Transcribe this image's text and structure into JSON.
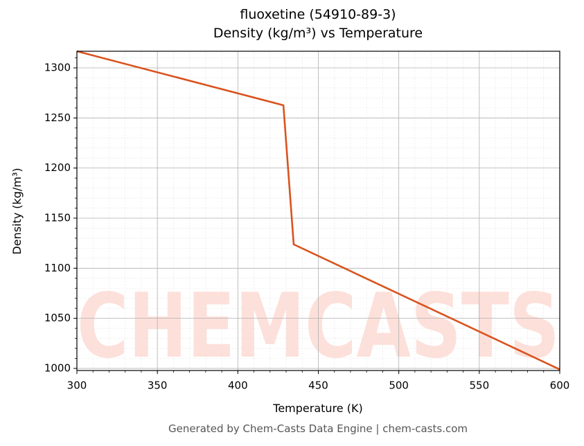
{
  "chart_data": {
    "type": "line",
    "title": "fluoxetine (54910-89-3)",
    "subtitle": "Density (kg/m³) vs Temperature",
    "x_label": "Temperature (K)",
    "y_label": "Density (kg/m³)",
    "footer": "Generated by Chem-Casts Data Engine | chem-casts.com",
    "watermark": "CHEMCASTS",
    "x": [
      300,
      428.3,
      434.7,
      600
    ],
    "series": [
      {
        "name": "Density",
        "color": "#d9531e",
        "values": [
          1316.6,
          1262.7,
          1123.8,
          999
        ]
      }
    ],
    "xlim": [
      300,
      600
    ],
    "xticks": [
      300,
      350,
      400,
      450,
      500,
      550,
      600
    ],
    "ylim": [
      997.9,
      1316.6
    ],
    "yticks": [
      1000,
      1050,
      1100,
      1150,
      1200,
      1250,
      1300
    ],
    "grid": true,
    "minor_divisions": 5
  }
}
